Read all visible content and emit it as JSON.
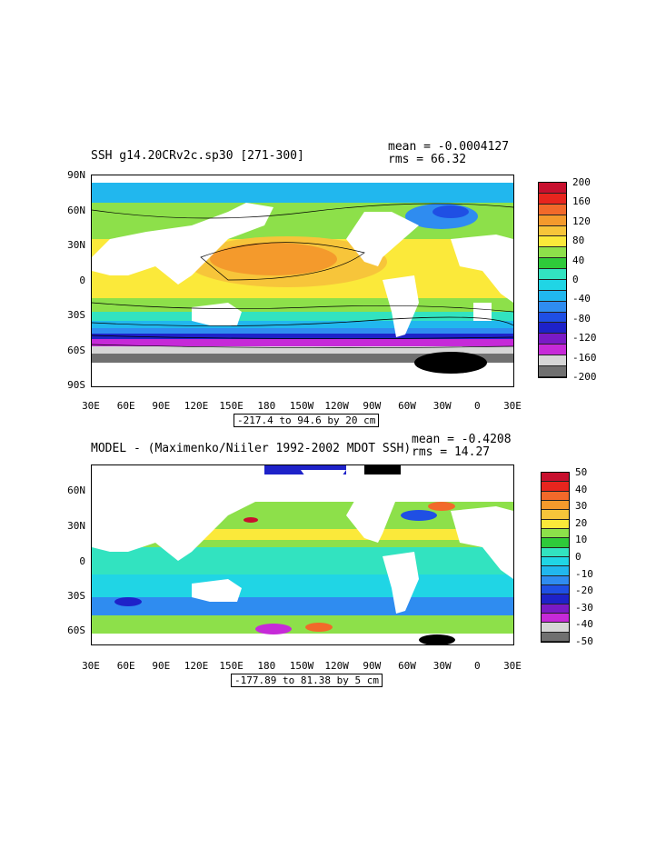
{
  "panel1": {
    "title": "SSH g14.20CRv2c.sp30 [271-300]",
    "mean_text": "mean = -0.0004127",
    "rms_text": "rms = 66.32",
    "range_text": "-217.4 to 94.6 by 20 cm",
    "lat_ticks": [
      "90N",
      "60N",
      "30N",
      "0",
      "30S",
      "60S",
      "90S"
    ],
    "lon_ticks": [
      "30E",
      "60E",
      "90E",
      "120E",
      "150E",
      "180",
      "150W",
      "120W",
      "90W",
      "60W",
      "30W",
      "0",
      "30E"
    ],
    "colorbar_labels": [
      "200",
      "160",
      "120",
      "80",
      "40",
      "0",
      "-40",
      "-80",
      "-120",
      "-160",
      "-200"
    ],
    "colorbar_colors": [
      "#c8102e",
      "#e8251e",
      "#f2692a",
      "#f49a2c",
      "#f7c53a",
      "#fbe93a",
      "#8de04a",
      "#2fca3a",
      "#32e3c0",
      "#20d5e5",
      "#21b7ee",
      "#2f8cf0",
      "#1f4fe4",
      "#1e22c9",
      "#7a1ac6",
      "#c62ad8",
      "#d6d6d6",
      "#707070"
    ]
  },
  "panel2": {
    "title": "MODEL - (Maximenko/Niiler 1992-2002 MDOT SSH)",
    "mean_text": "mean = -0.4208",
    "rms_text": "rms = 14.27",
    "range_text": "-177.89 to 81.38 by 5 cm",
    "lat_ticks": [
      "60N",
      "30N",
      "0",
      "30S",
      "60S"
    ],
    "lon_ticks": [
      "30E",
      "60E",
      "90E",
      "120E",
      "150E",
      "180",
      "150W",
      "120W",
      "90W",
      "60W",
      "30W",
      "0",
      "30E"
    ],
    "colorbar_labels": [
      "50",
      "40",
      "30",
      "20",
      "10",
      "0",
      "-10",
      "-20",
      "-30",
      "-40",
      "-50"
    ],
    "colorbar_colors": [
      "#c8102e",
      "#e8251e",
      "#f2692a",
      "#f49a2c",
      "#f7c53a",
      "#fbe93a",
      "#8de04a",
      "#2fca3a",
      "#32e3c0",
      "#20d5e5",
      "#21b7ee",
      "#2f8cf0",
      "#1f4fe4",
      "#1e22c9",
      "#7a1ac6",
      "#c62ad8",
      "#d6d6d6",
      "#707070"
    ]
  }
}
